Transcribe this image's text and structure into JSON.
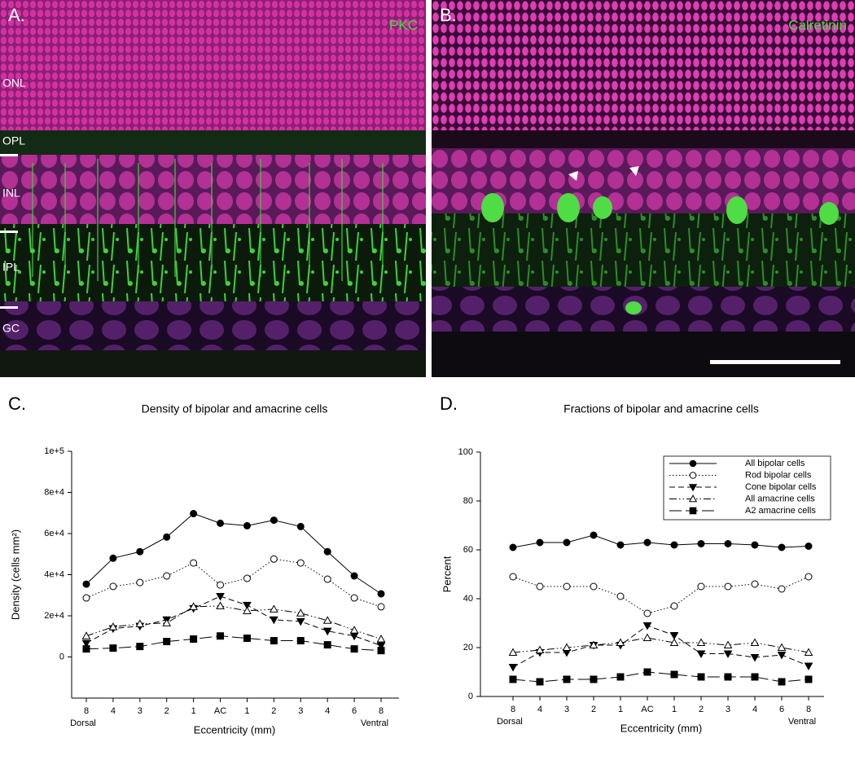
{
  "panels": [
    {
      "label": "A.",
      "stain": "PKC",
      "layers": [
        "ONL",
        "OPL",
        "INL",
        "IPL",
        "GC"
      ]
    },
    {
      "label": "B.",
      "stain": "Calretinin"
    }
  ],
  "chart_data": [
    {
      "type": "line",
      "panel_label": "C.",
      "title": "Density of bipolar and amacrine cells",
      "x_label": "Eccentricity (mm)",
      "y_label": "Density (cells mm²)",
      "categories": [
        "8",
        "4",
        "3",
        "2",
        "1",
        "AC",
        "1",
        "2",
        "3",
        "4",
        "6",
        "8"
      ],
      "x_annotations": [
        "Dorsal",
        "Ventral"
      ],
      "ylim": [
        -20000,
        100000
      ],
      "yticks": [
        {
          "value": 0,
          "label": "0"
        },
        {
          "value": 20000,
          "label": "2e+4"
        },
        {
          "value": 40000,
          "label": "4e+4"
        },
        {
          "value": 60000,
          "label": "6e+4"
        },
        {
          "value": 80000,
          "label": "8e+4"
        },
        {
          "value": 100000,
          "label": "1e+5"
        }
      ],
      "legend": false,
      "series": [
        {
          "color": "#000000",
          "line_style": "solid",
          "marker": "circle",
          "filled": true,
          "values": [
            35400,
            48000,
            51200,
            58300,
            69700,
            65000,
            63800,
            66500,
            63400,
            51200,
            39400,
            30700
          ]
        },
        {
          "color": "#000000",
          "line_style": "dotted",
          "marker": "circle",
          "filled": false,
          "values": [
            28700,
            34300,
            36200,
            39400,
            45700,
            35000,
            38200,
            47600,
            45700,
            37800,
            28700,
            24400
          ]
        },
        {
          "color": "#000000",
          "line_style": "dashed",
          "marker": "triangle-down",
          "filled": true,
          "values": [
            6700,
            13800,
            15000,
            18100,
            23600,
            29500,
            25200,
            18100,
            17300,
            12600,
            10200,
            5500
          ]
        },
        {
          "color": "#000000",
          "line_style": "dashdotdot",
          "marker": "triangle-up",
          "filled": false,
          "values": [
            10200,
            14600,
            16100,
            16500,
            24400,
            24800,
            22400,
            23200,
            21300,
            17700,
            13000,
            8700
          ]
        },
        {
          "color": "#000000",
          "line_style": "longdash",
          "marker": "square",
          "filled": true,
          "values": [
            3900,
            4300,
            5100,
            7500,
            8700,
            10200,
            9100,
            7900,
            7900,
            5900,
            3900,
            3100
          ]
        }
      ]
    },
    {
      "type": "line",
      "panel_label": "D.",
      "title": "Fractions of bipolar and amacrine cells",
      "x_label": "Eccentricity (mm)",
      "y_label": "Percent",
      "categories": [
        "8",
        "4",
        "3",
        "2",
        "1",
        "AC",
        "1",
        "2",
        "3",
        "4",
        "6",
        "8"
      ],
      "x_annotations": [
        "Dorsal",
        "Ventral"
      ],
      "ylim": [
        0,
        100
      ],
      "yticks": [
        0,
        20,
        40,
        60,
        80,
        100
      ],
      "legend": true,
      "legend_position": "top-right",
      "series": [
        {
          "name": "All bipolar cells",
          "color": "#000000",
          "line_style": "solid",
          "marker": "circle",
          "filled": true,
          "values": [
            61,
            63,
            63,
            66,
            62,
            63,
            62,
            62.5,
            62.5,
            62,
            61,
            61.5
          ]
        },
        {
          "name": "Rod bipolar cells",
          "color": "#000000",
          "line_style": "dotted",
          "marker": "circle",
          "filled": false,
          "values": [
            49,
            45,
            45,
            45,
            41,
            34,
            37,
            45,
            45,
            46,
            44,
            49
          ]
        },
        {
          "name": "Cone bipolar cells",
          "color": "#000000",
          "line_style": "dashed",
          "marker": "triangle-down",
          "filled": true,
          "values": [
            12,
            18,
            18,
            21,
            21,
            29,
            25,
            17.5,
            17.5,
            16,
            17,
            12.5
          ]
        },
        {
          "name": "All amacrine cells",
          "color": "#000000",
          "line_style": "dashdotdot",
          "marker": "triangle-up",
          "filled": false,
          "values": [
            18,
            19,
            20,
            21,
            22,
            24,
            22,
            22,
            21,
            22,
            20,
            18
          ]
        },
        {
          "name": "A2 amacrine cells",
          "color": "#000000",
          "line_style": "longdash",
          "marker": "square",
          "filled": true,
          "values": [
            7,
            6,
            7,
            7,
            8,
            10,
            9,
            8,
            8,
            8,
            6,
            7
          ]
        }
      ]
    }
  ]
}
